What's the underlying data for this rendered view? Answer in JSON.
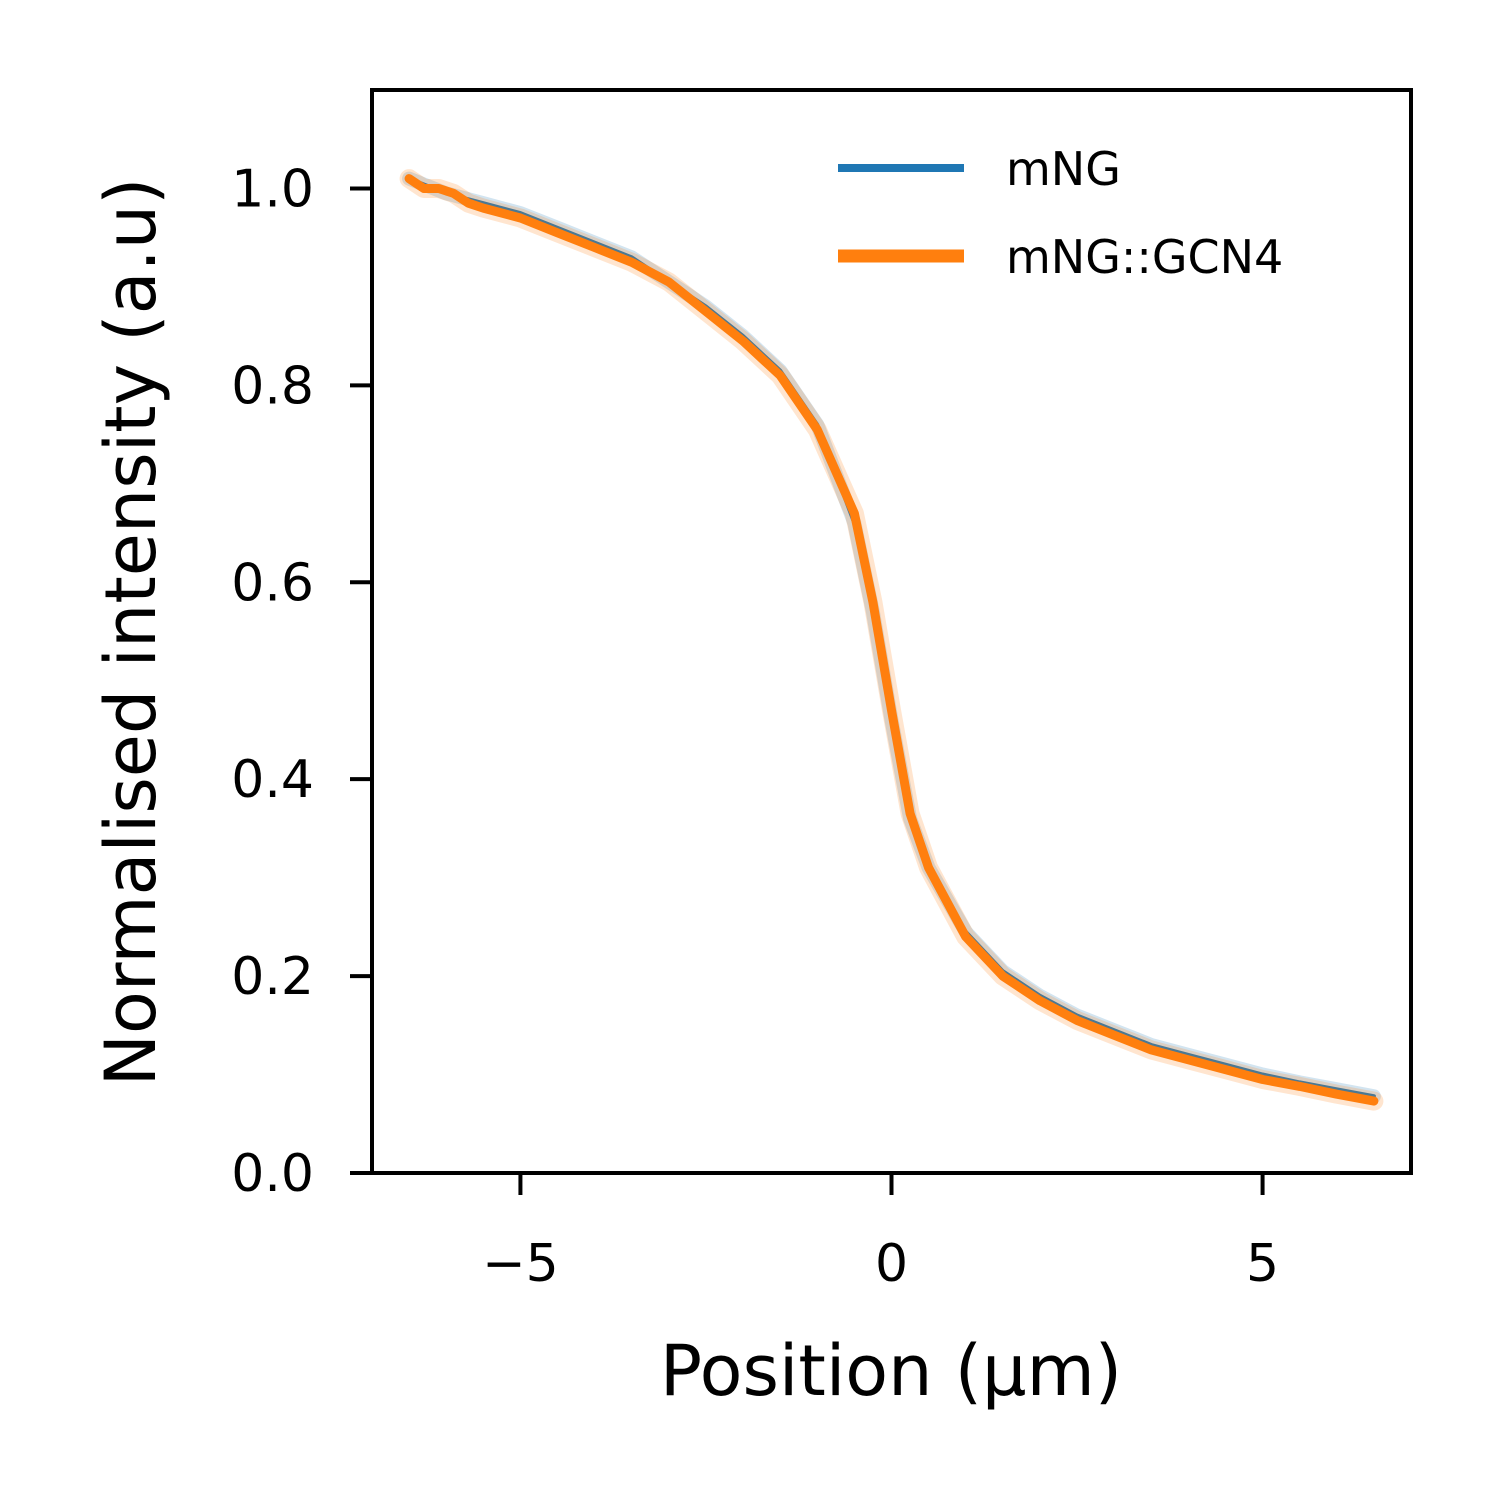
{
  "chart_data": {
    "type": "line",
    "xlabel": "Position (µm)",
    "ylabel": "Normalised intensity (a.u)",
    "xlim": [
      -7,
      7
    ],
    "ylim": [
      0.0,
      1.1
    ],
    "xticks": [
      -5,
      0,
      5
    ],
    "xtick_labels": [
      "−5",
      "0",
      "5"
    ],
    "yticks": [
      0.0,
      0.2,
      0.4,
      0.6,
      0.8,
      1.0
    ],
    "ytick_labels": [
      "0.0",
      "0.2",
      "0.4",
      "0.6",
      "0.8",
      "1.0"
    ],
    "grid": false,
    "legend_position": "top-right",
    "series": [
      {
        "name": "mNG",
        "color": "#1f77b4",
        "x": [
          -6.5,
          -6.0,
          -5.5,
          -5.0,
          -4.5,
          -4.0,
          -3.5,
          -3.0,
          -2.5,
          -2.0,
          -1.5,
          -1.0,
          -0.5,
          -0.25,
          0.0,
          0.25,
          0.5,
          1.0,
          1.5,
          2.0,
          2.5,
          3.0,
          3.5,
          4.0,
          4.5,
          5.0,
          5.5,
          6.0,
          6.5
        ],
        "y": [
          1.01,
          0.995,
          0.985,
          0.975,
          0.96,
          0.945,
          0.93,
          0.905,
          0.88,
          0.85,
          0.815,
          0.76,
          0.66,
          0.57,
          0.46,
          0.36,
          0.31,
          0.245,
          0.205,
          0.18,
          0.16,
          0.145,
          0.13,
          0.12,
          0.11,
          0.1,
          0.092,
          0.085,
          0.078
        ]
      },
      {
        "name": "mNG::GCN4",
        "color": "#ff7f0e",
        "x": [
          -6.5,
          -6.3,
          -6.1,
          -5.9,
          -5.7,
          -5.5,
          -5.0,
          -4.5,
          -4.0,
          -3.5,
          -3.0,
          -2.5,
          -2.0,
          -1.5,
          -1.0,
          -0.5,
          -0.25,
          0.0,
          0.25,
          0.5,
          1.0,
          1.5,
          2.0,
          2.5,
          3.0,
          3.5,
          4.0,
          4.5,
          5.0,
          5.5,
          6.0,
          6.5
        ],
        "y": [
          1.01,
          1.0,
          1.0,
          0.995,
          0.985,
          0.98,
          0.97,
          0.955,
          0.94,
          0.925,
          0.905,
          0.875,
          0.845,
          0.81,
          0.755,
          0.67,
          0.58,
          0.47,
          0.365,
          0.31,
          0.24,
          0.2,
          0.175,
          0.155,
          0.14,
          0.125,
          0.115,
          0.105,
          0.095,
          0.088,
          0.08,
          0.073
        ]
      }
    ]
  }
}
